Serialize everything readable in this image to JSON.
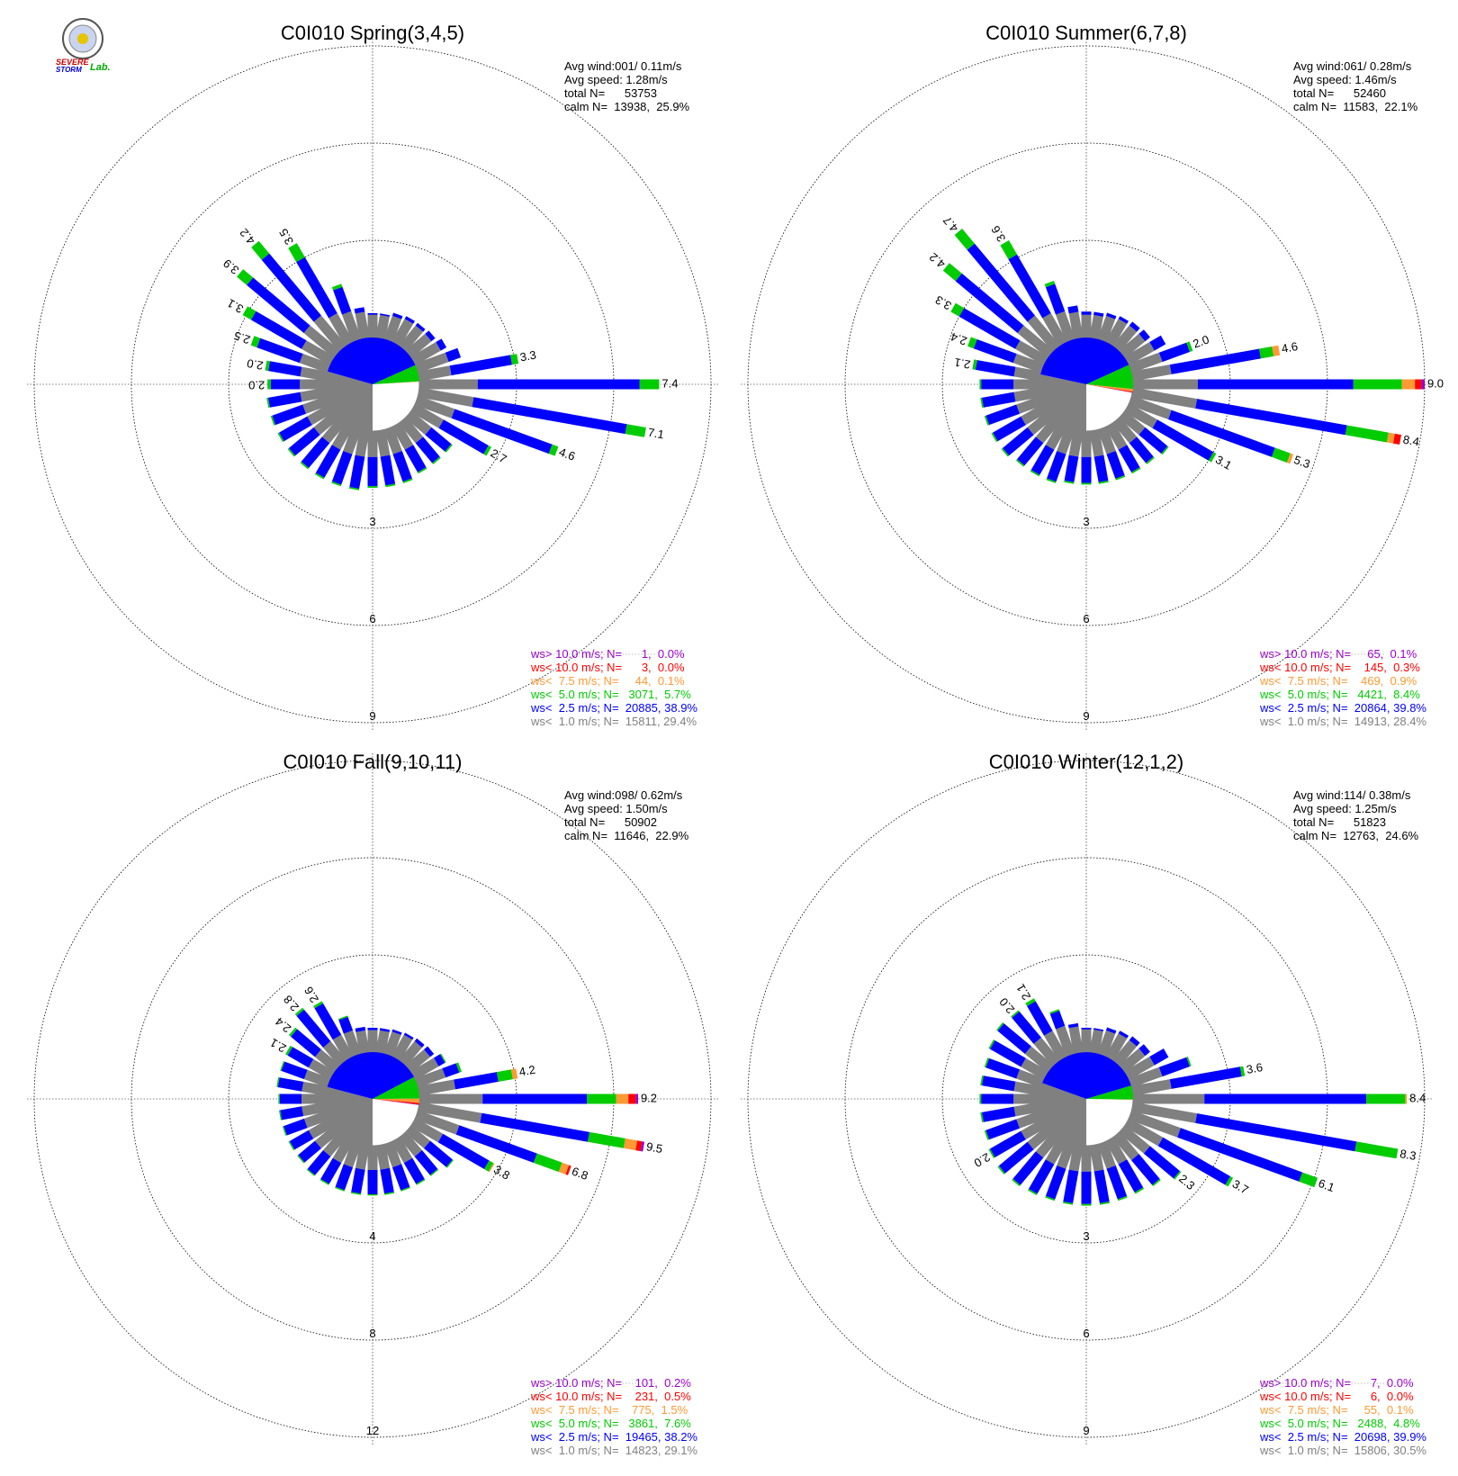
{
  "logo": {
    "line1": "SEVERE",
    "line2": "STORM",
    "line3": "Lab."
  },
  "colors": {
    "gray": "#808080",
    "blue": "#0000ff",
    "green": "#00cc00",
    "orange": "#ff9933",
    "red": "#ff0000",
    "purple": "#9900cc"
  },
  "legend_keys": [
    "purple",
    "red",
    "orange",
    "green",
    "blue",
    "gray"
  ],
  "chart_data": [
    {
      "type": "windrose",
      "title": "C0I010 Spring(3,4,5)",
      "stats": [
        "Avg wind:001/ 0.11m/s",
        "Avg speed: 1.28m/s",
        "total N=      53753",
        "calm N=  13938,  25.9%"
      ],
      "ring_values": [
        3,
        6,
        9
      ],
      "ring_labels": [
        "3",
        "6",
        "9"
      ],
      "legend": [
        "ws> 10.0 m/s; N=      1,  0.0%",
        "ws< 10.0 m/s; N=      3,  0.0%",
        "ws<  7.5 m/s; N=     44,  0.1%",
        "ws<  5.0 m/s; N=   3071,  5.7%",
        "ws<  2.5 m/s; N=  20885, 38.9%",
        "ws<  1.0 m/s; N=  15811, 29.4%"
      ],
      "directions_deg": [
        0,
        10,
        20,
        30,
        40,
        50,
        60,
        70,
        80,
        90,
        100,
        110,
        120,
        130,
        140,
        150,
        160,
        170,
        180,
        190,
        200,
        210,
        220,
        230,
        240,
        250,
        260,
        270,
        280,
        290,
        300,
        310,
        320,
        330,
        340,
        350
      ],
      "sectors": [
        {
          "gray": 0.7,
          "blue": 0.05,
          "green": 0.0
        },
        {
          "gray": 0.7,
          "blue": 0.05,
          "green": 0.0
        },
        {
          "gray": 0.75,
          "blue": 0.1,
          "green": 0.0
        },
        {
          "gray": 0.8,
          "blue": 0.1,
          "green": 0.0
        },
        {
          "gray": 0.8,
          "blue": 0.1,
          "green": 0.0
        },
        {
          "gray": 0.8,
          "blue": 0.15,
          "green": 0.0
        },
        {
          "gray": 0.9,
          "blue": 0.2,
          "green": 0.0
        },
        {
          "gray": 1.0,
          "blue": 0.4,
          "green": 0.0
        },
        {
          "gray": 1.0,
          "blue": 1.9,
          "green": 0.2,
          "label": "3.3"
        },
        {
          "gray": 1.8,
          "blue": 5.0,
          "green": 0.6,
          "label": "7.4"
        },
        {
          "gray": 1.7,
          "blue": 4.8,
          "green": 0.6,
          "label": "7.1"
        },
        {
          "gray": 1.2,
          "blue": 3.2,
          "green": 0.2,
          "label": "4.6"
        },
        {
          "gray": 1.0,
          "blue": 1.6,
          "green": 0.1,
          "label": "2.7"
        },
        {
          "gray": 0.8,
          "blue": 0.8,
          "green": 0.05
        },
        {
          "gray": 0.8,
          "blue": 0.8,
          "green": 0.05
        },
        {
          "gray": 0.8,
          "blue": 0.8,
          "green": 0.05
        },
        {
          "gray": 0.8,
          "blue": 0.9,
          "green": 0.05
        },
        {
          "gray": 0.8,
          "blue": 0.9,
          "green": 0.05
        },
        {
          "gray": 0.8,
          "blue": 0.9,
          "green": 0.05
        },
        {
          "gray": 0.8,
          "blue": 1.0,
          "green": 0.05
        },
        {
          "gray": 0.8,
          "blue": 1.0,
          "green": 0.05
        },
        {
          "gray": 0.8,
          "blue": 1.0,
          "green": 0.05
        },
        {
          "gray": 0.8,
          "blue": 1.0,
          "green": 0.05
        },
        {
          "gray": 0.8,
          "blue": 1.0,
          "green": 0.05
        },
        {
          "gray": 0.8,
          "blue": 1.0,
          "green": 0.05
        },
        {
          "gray": 0.8,
          "blue": 1.0,
          "green": 0.05
        },
        {
          "gray": 0.8,
          "blue": 1.0,
          "green": 0.05
        },
        {
          "gray": 0.8,
          "blue": 0.9,
          "green": 0.1,
          "label": "2.0"
        },
        {
          "gray": 0.8,
          "blue": 1.0,
          "green": 0.1,
          "label": "2.0"
        },
        {
          "gray": 0.9,
          "blue": 1.4,
          "green": 0.2,
          "label": "2.5"
        },
        {
          "gray": 1.0,
          "blue": 1.8,
          "green": 0.3,
          "label": "3.1"
        },
        {
          "gray": 1.2,
          "blue": 2.3,
          "green": 0.4,
          "label": "3.9"
        },
        {
          "gray": 1.2,
          "blue": 2.5,
          "green": 0.5,
          "label": "4.2"
        },
        {
          "gray": 1.0,
          "blue": 2.0,
          "green": 0.5,
          "label": "3.5"
        },
        {
          "gray": 0.9,
          "blue": 0.8,
          "green": 0.1
        },
        {
          "gray": 0.8,
          "blue": 0.15,
          "green": 0.0
        }
      ]
    },
    {
      "type": "windrose",
      "title": "C0I010 Summer(6,7,8)",
      "stats": [
        "Avg wind:061/ 0.28m/s",
        "Avg speed: 1.46m/s",
        "total N=      52460",
        "calm N=  11583,  22.1%"
      ],
      "ring_values": [
        3,
        6,
        9
      ],
      "ring_labels": [
        "3",
        "6",
        "9"
      ],
      "legend": [
        "ws> 10.0 m/s; N=     65,  0.1%",
        "ws< 10.0 m/s; N=    145,  0.3%",
        "ws<  7.5 m/s; N=    469,  0.9%",
        "ws<  5.0 m/s; N=   4421,  8.4%",
        "ws<  2.5 m/s; N=  20864, 39.8%",
        "ws<  1.0 m/s; N=  14913, 28.4%"
      ],
      "directions_deg": [
        0,
        10,
        20,
        30,
        40,
        50,
        60,
        70,
        80,
        90,
        100,
        110,
        120,
        130,
        140,
        150,
        160,
        170,
        180,
        190,
        200,
        210,
        220,
        230,
        240,
        250,
        260,
        270,
        280,
        290,
        300,
        310,
        320,
        330,
        340,
        350
      ],
      "sectors": [
        {
          "gray": 0.7,
          "blue": 0.1,
          "green": 0.0
        },
        {
          "gray": 0.7,
          "blue": 0.1,
          "green": 0.0
        },
        {
          "gray": 0.75,
          "blue": 0.1,
          "green": 0.0
        },
        {
          "gray": 0.8,
          "blue": 0.1,
          "green": 0.0
        },
        {
          "gray": 0.8,
          "blue": 0.15,
          "green": 0.0
        },
        {
          "gray": 0.8,
          "blue": 0.2,
          "green": 0.0
        },
        {
          "gray": 0.9,
          "blue": 0.4,
          "green": 0.0
        },
        {
          "gray": 1.0,
          "blue": 0.9,
          "green": 0.1,
          "label": "2.0"
        },
        {
          "gray": 1.2,
          "blue": 2.8,
          "green": 0.4,
          "orange": 0.2,
          "label": "4.6"
        },
        {
          "gray": 2.0,
          "blue": 4.8,
          "green": 1.5,
          "orange": 0.4,
          "red": 0.2,
          "purple": 0.1,
          "label": "9.0"
        },
        {
          "gray": 2.0,
          "blue": 4.7,
          "green": 1.3,
          "orange": 0.2,
          "red": 0.2,
          "label": "8.4"
        },
        {
          "gray": 1.3,
          "blue": 3.4,
          "green": 0.5,
          "orange": 0.1,
          "label": "5.3"
        },
        {
          "gray": 1.0,
          "blue": 2.0,
          "green": 0.1,
          "label": "3.1"
        },
        {
          "gray": 0.8,
          "blue": 0.9,
          "green": 0.05
        },
        {
          "gray": 0.8,
          "blue": 0.8,
          "green": 0.05
        },
        {
          "gray": 0.8,
          "blue": 0.8,
          "green": 0.05
        },
        {
          "gray": 0.8,
          "blue": 0.8,
          "green": 0.05
        },
        {
          "gray": 0.8,
          "blue": 0.8,
          "green": 0.05
        },
        {
          "gray": 0.8,
          "blue": 0.8,
          "green": 0.05
        },
        {
          "gray": 0.8,
          "blue": 0.8,
          "green": 0.05
        },
        {
          "gray": 0.8,
          "blue": 0.9,
          "green": 0.05
        },
        {
          "gray": 0.8,
          "blue": 0.9,
          "green": 0.05
        },
        {
          "gray": 0.8,
          "blue": 0.9,
          "green": 0.05
        },
        {
          "gray": 0.8,
          "blue": 1.0,
          "green": 0.05
        },
        {
          "gray": 0.8,
          "blue": 1.0,
          "green": 0.05
        },
        {
          "gray": 0.8,
          "blue": 1.0,
          "green": 0.05
        },
        {
          "gray": 0.8,
          "blue": 1.0,
          "green": 0.05
        },
        {
          "gray": 0.8,
          "blue": 1.0,
          "green": 0.05
        },
        {
          "gray": 0.8,
          "blue": 1.2,
          "green": 0.1,
          "label": "2.1"
        },
        {
          "gray": 0.9,
          "blue": 1.3,
          "green": 0.2,
          "label": "2.4"
        },
        {
          "gray": 1.0,
          "blue": 2.0,
          "green": 0.3,
          "label": "3.3"
        },
        {
          "gray": 1.2,
          "blue": 2.5,
          "green": 0.5,
          "label": "4.2"
        },
        {
          "gray": 1.2,
          "blue": 2.9,
          "green": 0.6,
          "label": "4.7"
        },
        {
          "gray": 1.0,
          "blue": 2.1,
          "green": 0.5,
          "label": "3.6"
        },
        {
          "gray": 0.9,
          "blue": 0.9,
          "green": 0.1
        },
        {
          "gray": 0.8,
          "blue": 0.2,
          "green": 0.0
        }
      ]
    },
    {
      "type": "windrose",
      "title": "C0I010 Fall(9,10,11)",
      "stats": [
        "Avg wind:098/ 0.62m/s",
        "Avg speed: 1.50m/s",
        "total N=      50902",
        "calm N=  11646,  22.9%"
      ],
      "ring_values": [
        4,
        8,
        12
      ],
      "ring_labels": [
        "4",
        "8",
        "12"
      ],
      "legend": [
        "ws> 10.0 m/s; N=    101,  0.2%",
        "ws< 10.0 m/s; N=    231,  0.5%",
        "ws<  7.5 m/s; N=    775,  1.5%",
        "ws<  5.0 m/s; N=   3861,  7.6%",
        "ws<  2.5 m/s; N=  19465, 38.2%",
        "ws<  1.0 m/s; N=  14823, 29.1%"
      ],
      "directions_deg": [
        0,
        10,
        20,
        30,
        40,
        50,
        60,
        70,
        80,
        90,
        100,
        110,
        120,
        130,
        140,
        150,
        160,
        170,
        180,
        190,
        200,
        210,
        220,
        230,
        240,
        250,
        260,
        270,
        280,
        290,
        300,
        310,
        320,
        330,
        340,
        350
      ],
      "sectors": [
        {
          "gray": 0.9,
          "blue": 0.1,
          "green": 0.0
        },
        {
          "gray": 0.9,
          "blue": 0.1,
          "green": 0.0
        },
        {
          "gray": 0.95,
          "blue": 0.1,
          "green": 0.0
        },
        {
          "gray": 1.0,
          "blue": 0.1,
          "green": 0.0
        },
        {
          "gray": 1.0,
          "blue": 0.15,
          "green": 0.0
        },
        {
          "gray": 1.0,
          "blue": 0.2,
          "green": 0.0
        },
        {
          "gray": 1.1,
          "blue": 0.3,
          "green": 0.05
        },
        {
          "gray": 1.2,
          "blue": 0.6,
          "green": 0.1
        },
        {
          "gray": 1.5,
          "blue": 1.8,
          "green": 0.6,
          "orange": 0.2,
          "label": "4.2"
        },
        {
          "gray": 2.6,
          "blue": 4.3,
          "green": 1.2,
          "orange": 0.5,
          "red": 0.3,
          "purple": 0.1,
          "label": "9.2"
        },
        {
          "gray": 2.6,
          "blue": 4.5,
          "green": 1.5,
          "orange": 0.5,
          "red": 0.2,
          "purple": 0.1,
          "label": "9.5"
        },
        {
          "gray": 1.8,
          "blue": 3.4,
          "green": 1.1,
          "orange": 0.3,
          "red": 0.1,
          "label": "6.8"
        },
        {
          "gray": 1.3,
          "blue": 2.2,
          "green": 0.2,
          "orange": 0.05,
          "label": "3.8"
        },
        {
          "gray": 1.0,
          "blue": 1.2,
          "green": 0.05
        },
        {
          "gray": 1.0,
          "blue": 1.0,
          "green": 0.05
        },
        {
          "gray": 1.0,
          "blue": 1.0,
          "green": 0.05
        },
        {
          "gray": 1.0,
          "blue": 1.0,
          "green": 0.05
        },
        {
          "gray": 1.0,
          "blue": 1.0,
          "green": 0.05
        },
        {
          "gray": 1.0,
          "blue": 1.0,
          "green": 0.05
        },
        {
          "gray": 1.0,
          "blue": 1.0,
          "green": 0.05
        },
        {
          "gray": 1.0,
          "blue": 1.0,
          "green": 0.05
        },
        {
          "gray": 1.0,
          "blue": 1.0,
          "green": 0.05
        },
        {
          "gray": 1.0,
          "blue": 1.0,
          "green": 0.05
        },
        {
          "gray": 1.0,
          "blue": 0.9,
          "green": 0.05
        },
        {
          "gray": 1.0,
          "blue": 0.9,
          "green": 0.05
        },
        {
          "gray": 1.0,
          "blue": 0.9,
          "green": 0.05
        },
        {
          "gray": 1.0,
          "blue": 0.9,
          "green": 0.05
        },
        {
          "gray": 1.0,
          "blue": 0.9,
          "green": 0.05
        },
        {
          "gray": 1.0,
          "blue": 1.0,
          "green": 0.05
        },
        {
          "gray": 1.0,
          "blue": 1.0,
          "green": 0.05
        },
        {
          "gray": 1.0,
          "blue": 1.0,
          "green": 0.1,
          "label": "2.1"
        },
        {
          "gray": 1.0,
          "blue": 1.3,
          "green": 0.1,
          "label": "2.4"
        },
        {
          "gray": 1.0,
          "blue": 1.7,
          "green": 0.1,
          "label": "2.8"
        },
        {
          "gray": 1.0,
          "blue": 1.5,
          "green": 0.1,
          "label": "2.6"
        },
        {
          "gray": 1.0,
          "blue": 0.6,
          "green": 0.05
        },
        {
          "gray": 0.9,
          "blue": 0.15,
          "green": 0.0
        }
      ]
    },
    {
      "type": "windrose",
      "title": "C0I010 Winter(12,1,2)",
      "stats": [
        "Avg wind:114/ 0.38m/s",
        "Avg speed: 1.25m/s",
        "total N=      51823",
        "calm N=  12763,  24.6%"
      ],
      "ring_values": [
        3,
        6,
        9
      ],
      "ring_labels": [
        "3",
        "6",
        "9"
      ],
      "legend": [
        "ws> 10.0 m/s; N=      7,  0.0%",
        "ws< 10.0 m/s; N=      6,  0.0%",
        "ws<  7.5 m/s; N=     55,  0.1%",
        "ws<  5.0 m/s; N=   2488,  4.8%",
        "ws<  2.5 m/s; N=  20698, 39.9%",
        "ws<  1.0 m/s; N=  15806, 30.5%"
      ],
      "directions_deg": [
        0,
        10,
        20,
        30,
        40,
        50,
        60,
        70,
        80,
        90,
        100,
        110,
        120,
        130,
        140,
        150,
        160,
        170,
        180,
        190,
        200,
        210,
        220,
        230,
        240,
        250,
        260,
        270,
        280,
        290,
        300,
        310,
        320,
        330,
        340,
        350
      ],
      "sectors": [
        {
          "gray": 0.7,
          "blue": 0.05,
          "green": 0.0
        },
        {
          "gray": 0.7,
          "blue": 0.05,
          "green": 0.0
        },
        {
          "gray": 0.75,
          "blue": 0.1,
          "green": 0.0
        },
        {
          "gray": 0.8,
          "blue": 0.1,
          "green": 0.0
        },
        {
          "gray": 0.8,
          "blue": 0.15,
          "green": 0.0
        },
        {
          "gray": 0.8,
          "blue": 0.2,
          "green": 0.0
        },
        {
          "gray": 0.9,
          "blue": 0.5,
          "green": 0.0
        },
        {
          "gray": 1.0,
          "blue": 0.9,
          "green": 0.05
        },
        {
          "gray": 1.2,
          "blue": 2.2,
          "green": 0.1,
          "label": "3.6"
        },
        {
          "gray": 2.2,
          "blue": 5.0,
          "green": 1.2,
          "orange": 0.05,
          "label": "8.4"
        },
        {
          "gray": 2.0,
          "blue": 5.0,
          "green": 1.3,
          "label": "8.3"
        },
        {
          "gray": 1.6,
          "blue": 4.0,
          "green": 0.5,
          "label": "6.1"
        },
        {
          "gray": 1.2,
          "blue": 2.4,
          "green": 0.1,
          "label": "3.7"
        },
        {
          "gray": 1.0,
          "blue": 1.2,
          "green": 0.05,
          "label": "2.3"
        },
        {
          "gray": 0.9,
          "blue": 1.0,
          "green": 0.05
        },
        {
          "gray": 0.8,
          "blue": 1.0,
          "green": 0.05
        },
        {
          "gray": 0.8,
          "blue": 1.0,
          "green": 0.05
        },
        {
          "gray": 0.8,
          "blue": 1.0,
          "green": 0.05
        },
        {
          "gray": 0.8,
          "blue": 1.0,
          "green": 0.05
        },
        {
          "gray": 0.8,
          "blue": 1.0,
          "green": 0.05
        },
        {
          "gray": 0.8,
          "blue": 1.0,
          "green": 0.05
        },
        {
          "gray": 0.8,
          "blue": 1.05,
          "green": 0.05
        },
        {
          "gray": 0.8,
          "blue": 1.1,
          "green": 0.05
        },
        {
          "gray": 0.8,
          "blue": 1.15,
          "green": 0.05
        },
        {
          "gray": 0.8,
          "blue": 1.1,
          "green": 0.05,
          "label": "2.0"
        },
        {
          "gray": 0.8,
          "blue": 1.0,
          "green": 0.05
        },
        {
          "gray": 0.8,
          "blue": 1.0,
          "green": 0.05
        },
        {
          "gray": 0.8,
          "blue": 1.0,
          "green": 0.05
        },
        {
          "gray": 0.8,
          "blue": 1.0,
          "green": 0.05
        },
        {
          "gray": 0.8,
          "blue": 1.0,
          "green": 0.05
        },
        {
          "gray": 0.8,
          "blue": 1.1,
          "green": 0.05
        },
        {
          "gray": 0.9,
          "blue": 1.1,
          "green": 0.05
        },
        {
          "gray": 0.9,
          "blue": 1.05,
          "green": 0.05,
          "label": "2.0"
        },
        {
          "gray": 0.9,
          "blue": 1.05,
          "green": 0.1,
          "label": "2.1"
        },
        {
          "gray": 0.9,
          "blue": 0.5,
          "green": 0.05
        },
        {
          "gray": 0.8,
          "blue": 0.1,
          "green": 0.0
        }
      ]
    }
  ]
}
